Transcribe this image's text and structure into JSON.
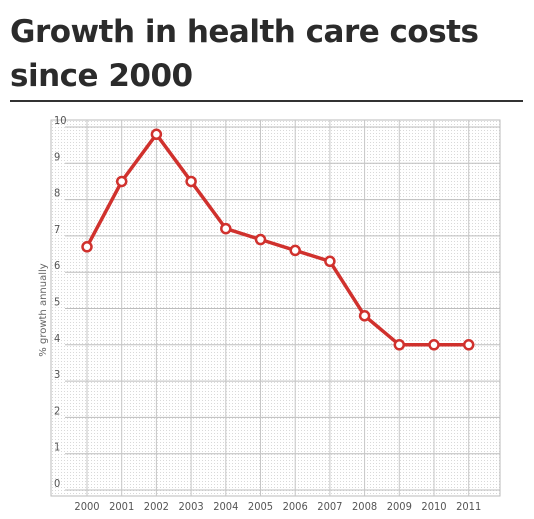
{
  "title": "Growth in health care costs since 2000",
  "chart_data": {
    "type": "line",
    "title": "Growth in health care costs since 2000",
    "xlabel": "",
    "ylabel": "% growth annually",
    "x": [
      "2000",
      "2001",
      "2002",
      "2003",
      "2004",
      "2005",
      "2006",
      "2007",
      "2008",
      "2009",
      "2010",
      "2011"
    ],
    "series": [
      {
        "values": [
          6.7,
          8.5,
          9.8,
          8.5,
          7.2,
          6.9,
          6.6,
          6.3,
          4.8,
          4.0,
          4.0,
          4.0
        ]
      }
    ],
    "ylim": [
      0,
      10
    ],
    "yticks": [
      0,
      1,
      2,
      3,
      4,
      5,
      6,
      7,
      8,
      9,
      10
    ],
    "grid": true,
    "line_color": "#d0312d",
    "marker_fill": "#ffffff"
  }
}
